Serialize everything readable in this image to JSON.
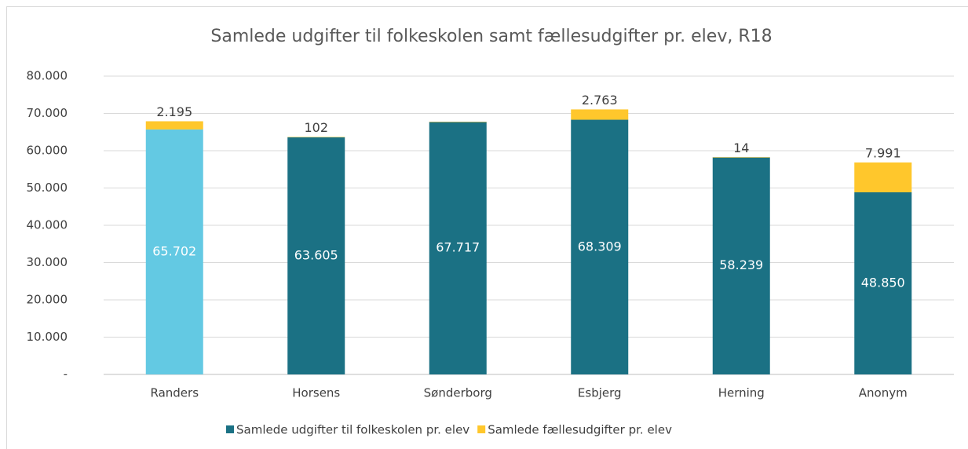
{
  "chart_data": {
    "type": "stacked_bar",
    "title": "Samlede udgifter til folkeskolen samt fællesudgifter pr. elev, R18",
    "categories": [
      "Randers",
      "Horsens",
      "Sønderborg",
      "Esbjerg",
      "Herning",
      "Anonym"
    ],
    "series": [
      {
        "name": "Samlede udgifter til folkeskolen pr. elev",
        "color": "#1b7184",
        "colors": [
          "#63c9e3",
          "#1b7184",
          "#1b7184",
          "#1b7184",
          "#1b7184",
          "#1b7184"
        ],
        "values": [
          65702,
          63605,
          67717,
          68309,
          58239,
          48850
        ],
        "value_labels": [
          "65.702",
          "63.605",
          "67.717",
          "68.309",
          "58.239",
          "48.850"
        ]
      },
      {
        "name": "Samlede fællesudgifter pr. elev",
        "color": "#ffc72c",
        "values": [
          2195,
          102,
          50,
          2763,
          14,
          7991
        ],
        "value_labels": [
          "2.195",
          "102",
          null,
          "2.763",
          "14",
          "7.991"
        ]
      }
    ],
    "ylim": [
      0,
      80000
    ],
    "yticks": [
      {
        "value": 0,
        "label": "-"
      },
      {
        "value": 10000,
        "label": "10.000"
      },
      {
        "value": 20000,
        "label": "20.000"
      },
      {
        "value": 30000,
        "label": "30.000"
      },
      {
        "value": 40000,
        "label": "40.000"
      },
      {
        "value": 50000,
        "label": "50.000"
      },
      {
        "value": 60000,
        "label": "60.000"
      },
      {
        "value": 70000,
        "label": "70.000"
      },
      {
        "value": 80000,
        "label": "80.000"
      }
    ],
    "grid": true,
    "legend": "bottom"
  }
}
